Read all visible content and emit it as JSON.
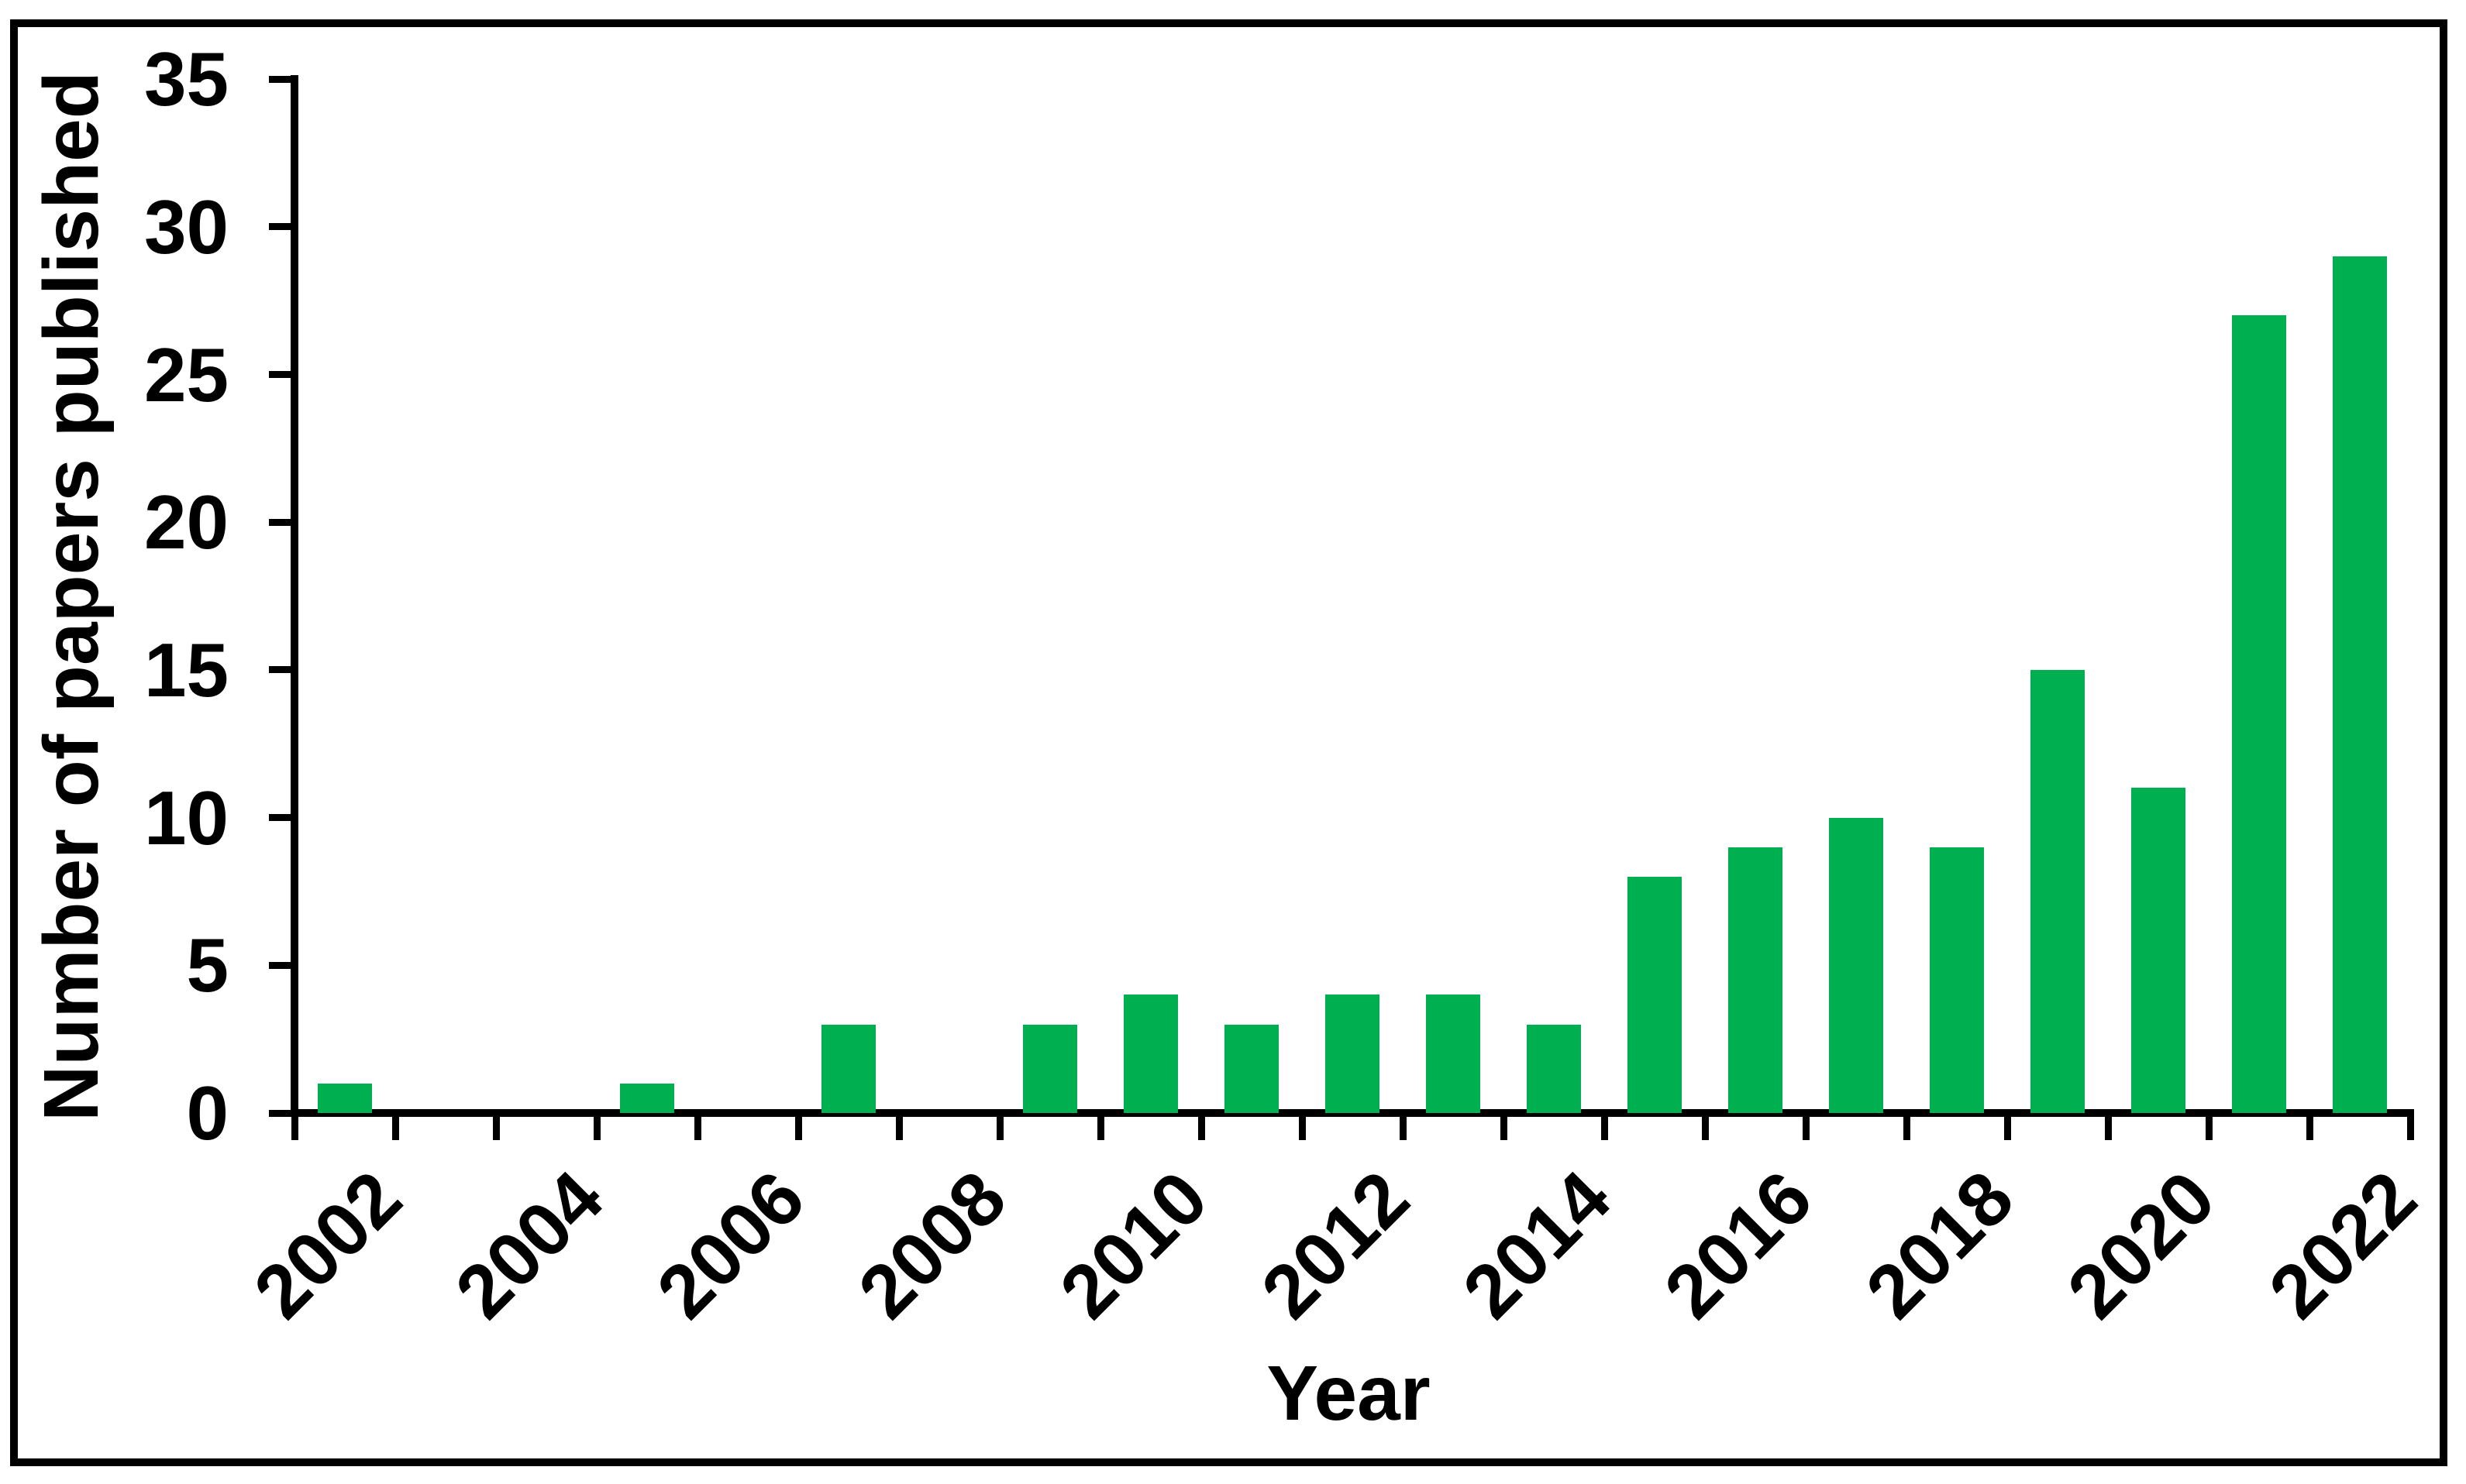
{
  "chart_data": {
    "type": "bar",
    "title": "",
    "categories": [
      "2002",
      "2003",
      "2004",
      "2005",
      "2006",
      "2007",
      "2008",
      "2009",
      "2010",
      "2011",
      "2012",
      "2013",
      "2014",
      "2015",
      "2016",
      "2017",
      "2018",
      "2019",
      "2020",
      "2021",
      "2022"
    ],
    "values": [
      1,
      0,
      0,
      1,
      0,
      3,
      0,
      3,
      4,
      3,
      4,
      4,
      3,
      8,
      9,
      10,
      9,
      15,
      11,
      27,
      29
    ],
    "xlabel": "Year",
    "ylabel": "Number of papers published",
    "ylim": [
      0,
      35
    ],
    "ytick_step": 5,
    "y_tick_labels": [
      "0",
      "5",
      "10",
      "15",
      "20",
      "25",
      "30",
      "35"
    ],
    "x_tick_labels_shown": [
      "2002",
      "2004",
      "2006",
      "2008",
      "2010",
      "2012",
      "2014",
      "2016",
      "2018",
      "2020",
      "2022"
    ],
    "x_label_interval": 2,
    "x_tick_label_rotation_deg": 45,
    "bar_color": "#00B050",
    "axis_color": "#000000",
    "text_color": "#000000",
    "background_color": "#ffffff",
    "grid": false,
    "legend": false
  }
}
